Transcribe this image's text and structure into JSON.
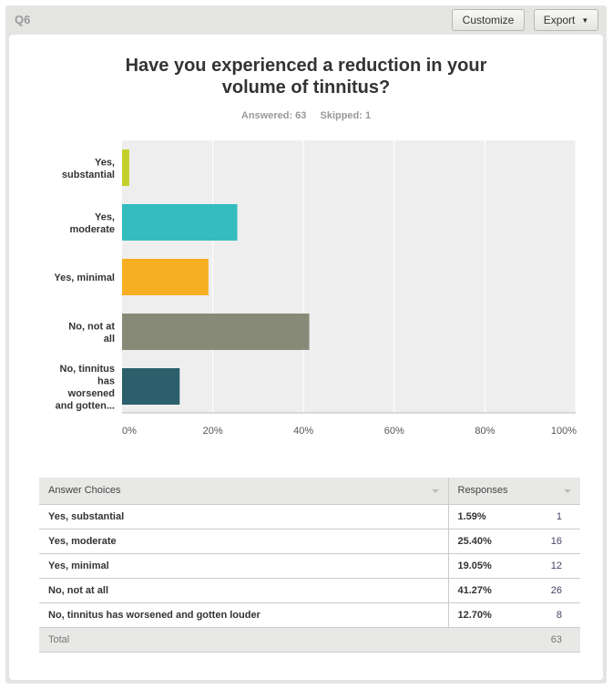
{
  "header": {
    "question_id": "Q6",
    "customize_label": "Customize",
    "export_label": "Export"
  },
  "chart_data": {
    "type": "bar",
    "orientation": "horizontal",
    "title": "Have you experienced a reduction in your volume of tinnitus?",
    "answered": "Answered: 63",
    "skipped": "Skipped: 1",
    "categories": [
      [
        "Yes,",
        "substantial"
      ],
      [
        "Yes,",
        "moderate"
      ],
      [
        "Yes, minimal"
      ],
      [
        "No, not at",
        "all"
      ],
      [
        "No, tinnitus",
        "has",
        "worsened",
        "and gotten..."
      ]
    ],
    "values": [
      1.59,
      25.4,
      19.05,
      41.27,
      12.7
    ],
    "colors": [
      "#c5cf2c",
      "#34bcbf",
      "#f7ae21",
      "#888a78",
      "#2c5f6c"
    ],
    "xlim": [
      0,
      100
    ],
    "ticks": [
      "0%",
      "20%",
      "40%",
      "60%",
      "80%",
      "100%"
    ],
    "grid": true
  },
  "table": {
    "headers": [
      "Answer Choices",
      "Responses"
    ],
    "rows": [
      {
        "choice": "Yes, substantial",
        "percent": "1.59%",
        "count": "1"
      },
      {
        "choice": "Yes, moderate",
        "percent": "25.40%",
        "count": "16"
      },
      {
        "choice": "Yes, minimal",
        "percent": "19.05%",
        "count": "12"
      },
      {
        "choice": "No, not at all",
        "percent": "41.27%",
        "count": "26"
      },
      {
        "choice": "No, tinnitus has worsened and gotten louder",
        "percent": "12.70%",
        "count": "8"
      }
    ],
    "total_label": "Total",
    "total": "63"
  }
}
